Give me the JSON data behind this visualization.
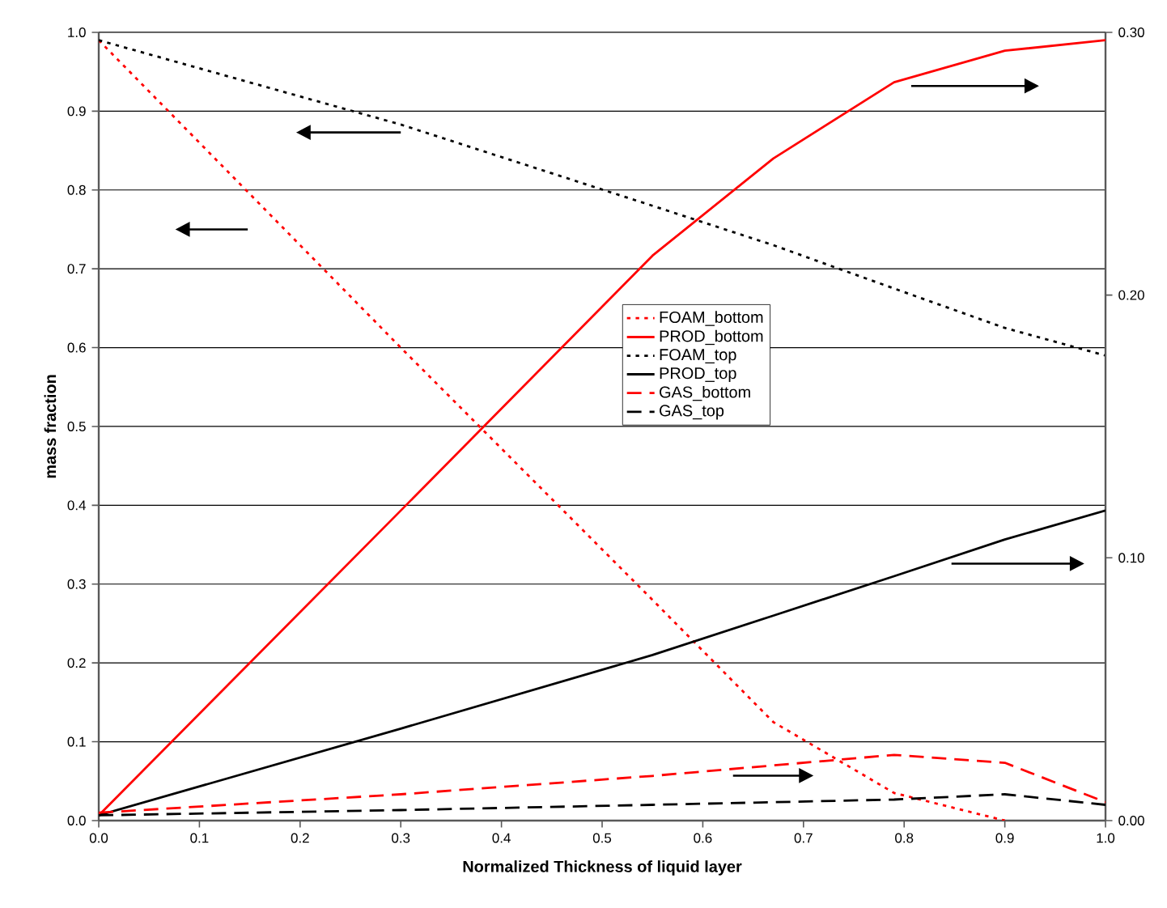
{
  "chart_data": {
    "type": "line",
    "xlabel": "Normalized Thickness of liquid layer",
    "ylabel": "mass fraction",
    "x": [
      0,
      0.3,
      0.55,
      0.67,
      0.79,
      0.9,
      1.0
    ],
    "xlim": [
      0,
      1
    ],
    "xticks": [
      {
        "value": 0,
        "label": "0.0"
      },
      0.1,
      0.2,
      0.3,
      0.4,
      0.5,
      0.6,
      0.7,
      0.8,
      0.9,
      {
        "value": 1,
        "label": "1.0"
      }
    ],
    "ylim": [
      0,
      1
    ],
    "yticks": [
      {
        "value": 0,
        "label": "0.0"
      },
      0.1,
      0.2,
      0.3,
      0.4,
      0.5,
      0.6,
      0.7,
      0.8,
      0.9,
      {
        "value": 1,
        "label": "1.0"
      }
    ],
    "y2lim": [
      0,
      0.3
    ],
    "y2ticks": [
      {
        "value": 0,
        "label": "0.00"
      },
      {
        "value": 0.1,
        "label": "0.10"
      },
      {
        "value": 0.2,
        "label": "0.20"
      },
      {
        "value": 0.3,
        "label": "0.30"
      }
    ],
    "grid": "y",
    "legend": "center",
    "marker": "none",
    "series": [
      {
        "name": "FOAM_bottom",
        "color": "#ff0000",
        "line_style": "dotted",
        "values": [
          0.99,
          0.6,
          0.28,
          0.125,
          0.035,
          0.0,
          null
        ]
      },
      {
        "name": "PROD_bottom",
        "color": "#ff0000",
        "line_style": "solid",
        "axis": "y2",
        "values": [
          0.002,
          0.118,
          0.215,
          0.252,
          0.281,
          0.293,
          0.297
        ]
      },
      {
        "name": "FOAM_top",
        "color": "#000000",
        "line_style": "dotted",
        "values": [
          0.99,
          0.883,
          0.78,
          0.73,
          0.675,
          0.625,
          0.59
        ]
      },
      {
        "name": "PROD_top",
        "color": "#000000",
        "line_style": "solid",
        "axis": "y2",
        "values": [
          0.002,
          0.035,
          0.063,
          0.078,
          0.093,
          0.107,
          0.118
        ]
      },
      {
        "name": "GAS_bottom",
        "color": "#ff0000",
        "line_style": "dashed",
        "axis": "y2",
        "values": [
          0.003,
          0.01,
          0.017,
          0.021,
          0.025,
          0.022,
          0.007
        ]
      },
      {
        "name": "GAS_top",
        "color": "#000000",
        "line_style": "dashed",
        "axis": "y2",
        "values": [
          0.002,
          0.004,
          0.006,
          0.007,
          0.008,
          0.01,
          0.006
        ]
      }
    ]
  }
}
